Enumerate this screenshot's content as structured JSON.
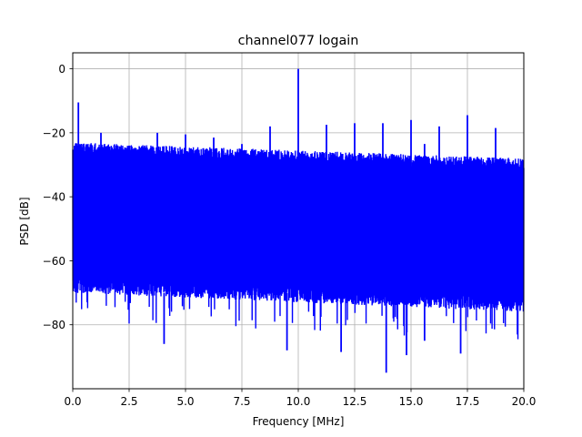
{
  "chart_data": {
    "type": "line",
    "title": "channel077 logain",
    "xlabel": "Frequency [MHz]",
    "ylabel": "PSD [dB]",
    "xlim": [
      0,
      20
    ],
    "ylim": [
      -100,
      5
    ],
    "x_ticks": [
      0.0,
      2.5,
      5.0,
      7.5,
      10.0,
      12.5,
      15.0,
      17.5,
      20.0
    ],
    "x_tick_labels": [
      "0.0",
      "2.5",
      "5.0",
      "7.5",
      "10.0",
      "12.5",
      "15.0",
      "17.5",
      "20.0"
    ],
    "y_ticks": [
      0,
      -20,
      -40,
      -60,
      -80
    ],
    "y_tick_labels": [
      "0",
      "−20",
      "−40",
      "−60",
      "−80"
    ],
    "grid": true,
    "line_color": "#0000ff",
    "noise_floor": {
      "upper_envelope_db": [
        -23,
        -28
      ],
      "lower_envelope_db": [
        -70,
        -76
      ]
    },
    "spurs": [
      {
        "x": 0.25,
        "y": -10.5
      },
      {
        "x": 1.25,
        "y": -20.0
      },
      {
        "x": 2.5,
        "y": -24.0
      },
      {
        "x": 3.75,
        "y": -20.0
      },
      {
        "x": 5.0,
        "y": -20.5
      },
      {
        "x": 6.25,
        "y": -21.5
      },
      {
        "x": 7.5,
        "y": -23.5
      },
      {
        "x": 8.75,
        "y": -18.0
      },
      {
        "x": 10.0,
        "y": 0.0
      },
      {
        "x": 11.25,
        "y": -17.5
      },
      {
        "x": 12.5,
        "y": -17.0
      },
      {
        "x": 13.75,
        "y": -17.0
      },
      {
        "x": 15.0,
        "y": -16.0
      },
      {
        "x": 15.6,
        "y": -23.5
      },
      {
        "x": 16.25,
        "y": -18.0
      },
      {
        "x": 17.5,
        "y": -14.5
      },
      {
        "x": 18.75,
        "y": -18.5
      }
    ],
    "dips": [
      {
        "x": 13.9,
        "y": -95.0
      },
      {
        "x": 14.8,
        "y": -89.5
      },
      {
        "x": 11.9,
        "y": -88.5
      },
      {
        "x": 9.5,
        "y": -88.0
      },
      {
        "x": 4.05,
        "y": -86.0
      },
      {
        "x": 15.6,
        "y": -85.0
      },
      {
        "x": 17.2,
        "y": -89.0
      }
    ]
  }
}
